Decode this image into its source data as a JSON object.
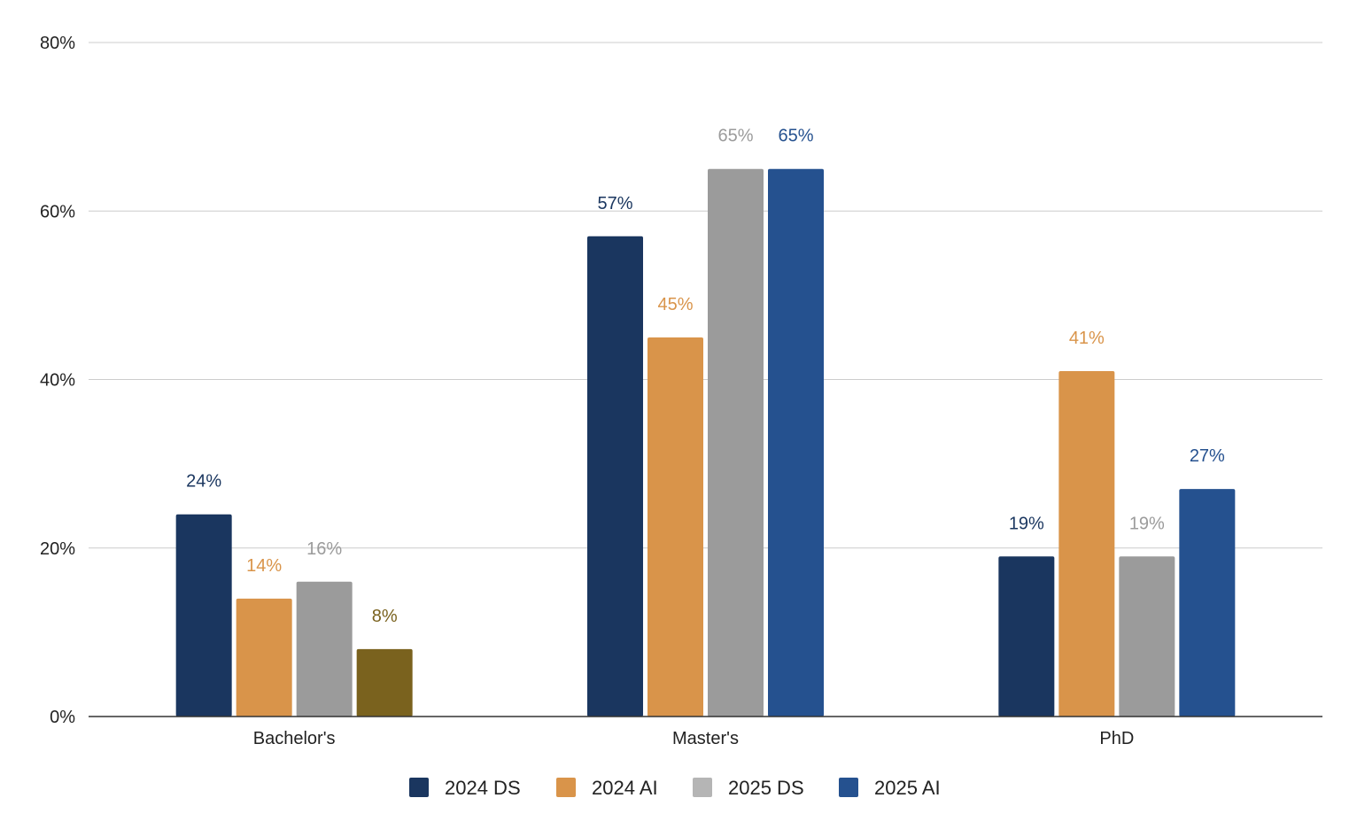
{
  "chart_data": {
    "type": "bar",
    "title": "",
    "xlabel": "",
    "ylabel": "",
    "categories": [
      "Bachelor's",
      "Master's",
      "PhD"
    ],
    "ylim": [
      0,
      80
    ],
    "yticks": [
      0,
      20,
      40,
      60,
      80
    ],
    "yticks_labels": [
      "0%",
      "20%",
      "40%",
      "60%",
      "80%"
    ],
    "grid": true,
    "legend_position": "bottom",
    "series": [
      {
        "name": "2024 DS",
        "color": "#1a365f",
        "values": [
          24,
          57,
          19
        ],
        "labels": [
          "24%",
          "57%",
          "19%"
        ],
        "label_colors": [
          "#1a365f",
          "#1a365f",
          "#1a365f"
        ]
      },
      {
        "name": "2024 AI",
        "color": "#d9944a",
        "values": [
          14,
          45,
          41
        ],
        "labels": [
          "14%",
          "45%",
          "41%"
        ],
        "label_colors": [
          "#d9944a",
          "#d9944a",
          "#d9944a"
        ]
      },
      {
        "name": "2025 DS",
        "color": "#9b9b9b",
        "values": [
          16,
          65,
          19
        ],
        "labels": [
          "16%",
          "65%",
          "19%"
        ],
        "label_colors": [
          "#9b9b9b",
          "#9b9b9b",
          "#9b9b9b"
        ]
      },
      {
        "name": "2025 AI",
        "color": "#25518f",
        "values": [
          8,
          65,
          27
        ],
        "labels": [
          "8%",
          "65%",
          "27%"
        ],
        "label_colors": [
          "#7a621e",
          "#25518f",
          "#25518f"
        ],
        "point_colors": [
          "#7a621e",
          "#25518f",
          "#25518f"
        ]
      }
    ],
    "legend": [
      {
        "name": "2024 DS",
        "color": "#1a365f"
      },
      {
        "name": "2024 AI",
        "color": "#d9944a"
      },
      {
        "name": "2025 DS",
        "color": "#b5b5b5"
      },
      {
        "name": "2025 AI",
        "color": "#25518f"
      }
    ]
  }
}
